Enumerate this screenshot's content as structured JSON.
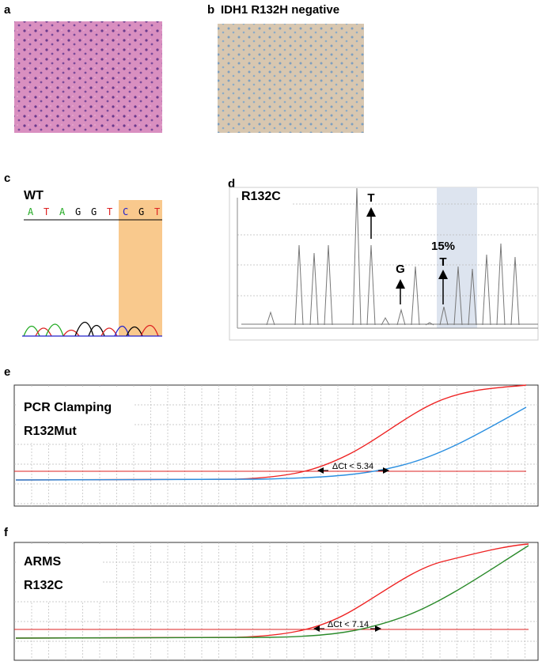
{
  "panels": [
    {
      "label": "a"
    },
    {
      "label": "b",
      "title": "IDH1 R132H negative"
    },
    {
      "label": "c",
      "title": "WT",
      "sequence": [
        "A",
        "T",
        "A",
        "G",
        "G",
        "T",
        "C",
        "G",
        "T"
      ]
    },
    {
      "label": "d",
      "title": "R132C",
      "annotations": [
        "T",
        "G",
        "15%",
        "T"
      ]
    },
    {
      "label": "e",
      "title": "PCR Clamping",
      "subtitle": "R132Mut",
      "delta": "ΔCt < 5.34"
    },
    {
      "label": "f",
      "title": "ARMS",
      "subtitle": "R132C",
      "delta": "ΔCt < 7.14"
    }
  ]
}
